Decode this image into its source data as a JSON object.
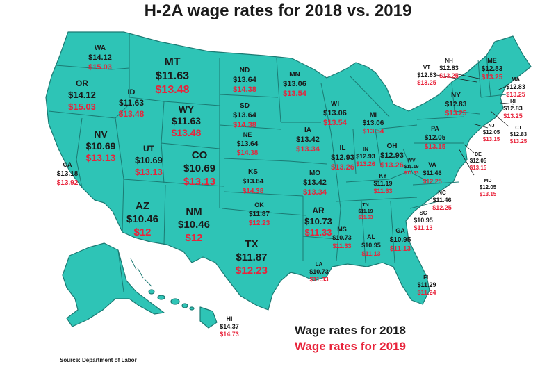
{
  "title": "H-2A wage rates for 2018 vs. 2019",
  "legend": {
    "label_2018": "Wage rates for 2018",
    "label_2019": "Wage rates for 2019",
    "color_2018": "#1a1a1a",
    "color_2019": "#e8233a"
  },
  "source": "Source: Department of Labor",
  "map_color": "#2ec4b6",
  "states": [
    {
      "abbr": "WA",
      "wage_2018": "$14.12",
      "wage_2019": "$15.03"
    },
    {
      "abbr": "OR",
      "wage_2018": "$14.12",
      "wage_2019": "$15.03"
    },
    {
      "abbr": "CA",
      "wage_2018": "$13.18",
      "wage_2019": "$13.92"
    },
    {
      "abbr": "ID",
      "wage_2018": "$11.63",
      "wage_2019": "$13.48"
    },
    {
      "abbr": "NV",
      "wage_2018": "$10.69",
      "wage_2019": "$13.13"
    },
    {
      "abbr": "MT",
      "wage_2018": "$11.63",
      "wage_2019": "$13.48"
    },
    {
      "abbr": "WY",
      "wage_2018": "$11.63",
      "wage_2019": "$13.48"
    },
    {
      "abbr": "UT",
      "wage_2018": "$10.69",
      "wage_2019": "$13.13"
    },
    {
      "abbr": "CO",
      "wage_2018": "$10.69",
      "wage_2019": "$13.13"
    },
    {
      "abbr": "AZ",
      "wage_2018": "$10.46",
      "wage_2019": "$12"
    },
    {
      "abbr": "NM",
      "wage_2018": "$10.46",
      "wage_2019": "$12"
    },
    {
      "abbr": "ND",
      "wage_2018": "$13.64",
      "wage_2019": "$14.38"
    },
    {
      "abbr": "SD",
      "wage_2018": "$13.64",
      "wage_2019": "$14.38"
    },
    {
      "abbr": "NE",
      "wage_2018": "$13.64",
      "wage_2019": "$14.38"
    },
    {
      "abbr": "KS",
      "wage_2018": "$13.64",
      "wage_2019": "$14.38"
    },
    {
      "abbr": "OK",
      "wage_2018": "$11.87",
      "wage_2019": "$12.23"
    },
    {
      "abbr": "TX",
      "wage_2018": "$11.87",
      "wage_2019": "$12.23"
    },
    {
      "abbr": "MN",
      "wage_2018": "$13.06",
      "wage_2019": "$13.54"
    },
    {
      "abbr": "IA",
      "wage_2018": "$13.42",
      "wage_2019": "$13.34"
    },
    {
      "abbr": "MO",
      "wage_2018": "$13.42",
      "wage_2019": "$13.34"
    },
    {
      "abbr": "AR",
      "wage_2018": "$10.73",
      "wage_2019": "$11.33"
    },
    {
      "abbr": "LA",
      "wage_2018": "$10.73",
      "wage_2019": "$11.33"
    },
    {
      "abbr": "WI",
      "wage_2018": "$13.06",
      "wage_2019": "$13.54"
    },
    {
      "abbr": "IL",
      "wage_2018": "$12.93",
      "wage_2019": "$13.26"
    },
    {
      "abbr": "MI",
      "wage_2018": "$13.06",
      "wage_2019": "$13.54"
    },
    {
      "abbr": "IN",
      "wage_2018": "$12.93",
      "wage_2019": "$13.26"
    },
    {
      "abbr": "OH",
      "wage_2018": "$12.93",
      "wage_2019": "$13.26"
    },
    {
      "abbr": "KY",
      "wage_2018": "$11.19",
      "wage_2019": "$11.63"
    },
    {
      "abbr": "TN",
      "wage_2018": "$11.19",
      "wage_2019": "$11.63"
    },
    {
      "abbr": "MS",
      "wage_2018": "$10.73",
      "wage_2019": "$11.33"
    },
    {
      "abbr": "AL",
      "wage_2018": "$10.95",
      "wage_2019": "$11.13"
    },
    {
      "abbr": "GA",
      "wage_2018": "$10.95",
      "wage_2019": "$11.13"
    },
    {
      "abbr": "FL",
      "wage_2018": "$11.29",
      "wage_2019": "$11.24"
    },
    {
      "abbr": "SC",
      "wage_2018": "$10.95",
      "wage_2019": "$11.13"
    },
    {
      "abbr": "NC",
      "wage_2018": "$11.46",
      "wage_2019": "$12.25"
    },
    {
      "abbr": "VA",
      "wage_2018": "$11.46",
      "wage_2019": "$12.25"
    },
    {
      "abbr": "WV",
      "wage_2018": "$11.19",
      "wage_2019": "$11.63"
    },
    {
      "abbr": "PA",
      "wage_2018": "$12.05",
      "wage_2019": "$13.15"
    },
    {
      "abbr": "NY",
      "wage_2018": "$12.83",
      "wage_2019": "$13.25"
    },
    {
      "abbr": "VT",
      "wage_2018": "$12.83",
      "wage_2019": "$13.25"
    },
    {
      "abbr": "NH",
      "wage_2018": "$12.83",
      "wage_2019": "$13.25"
    },
    {
      "abbr": "ME",
      "wage_2018": "$12.83",
      "wage_2019": "$13.25"
    },
    {
      "abbr": "MA",
      "wage_2018": "$12.83",
      "wage_2019": "$13.25"
    },
    {
      "abbr": "RI",
      "wage_2018": "$12.83",
      "wage_2019": "$13.25"
    },
    {
      "abbr": "CT",
      "wage_2018": "$12.83",
      "wage_2019": "$13.25"
    },
    {
      "abbr": "NJ",
      "wage_2018": "$12.05",
      "wage_2019": "$13.15"
    },
    {
      "abbr": "DE",
      "wage_2018": "$12.05",
      "wage_2019": "$13.15"
    },
    {
      "abbr": "MD",
      "wage_2018": "$12.05",
      "wage_2019": "$13.15"
    },
    {
      "abbr": "HI",
      "wage_2018": "$14.37",
      "wage_2019": "$14.73"
    }
  ]
}
